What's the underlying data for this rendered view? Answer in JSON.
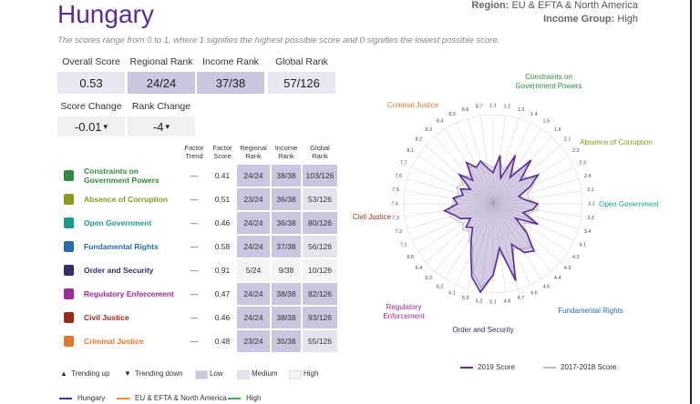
{
  "header": {
    "title": "Hungary",
    "region_label": "Region:",
    "region": "EU & EFTA & North America",
    "income_label": "Income Group:",
    "income": "High",
    "subtitle": "The scores range from 0 to 1, where 1 signifies the highest possible score and 0 signifies the lowest possible score."
  },
  "scores": [
    {
      "label": "Overall Score",
      "value": "0.53"
    },
    {
      "label": "Regional Rank",
      "value": "24/24"
    },
    {
      "label": "Income Rank",
      "value": "37/38"
    },
    {
      "label": "Global Rank",
      "value": "57/126"
    }
  ],
  "changes": [
    {
      "label": "Score Change",
      "value": "-0.01"
    },
    {
      "label": "Rank Change",
      "value": "-4"
    }
  ],
  "table": {
    "columns": [
      "Factor Trend",
      "Factor Score",
      "Regional Rank",
      "Income Rank",
      "Global Rank"
    ],
    "rows": [
      [
        "Constraints on Government Powers",
        "—",
        "0.41",
        "24/24",
        "38/38",
        "103/126"
      ],
      [
        "Absence of Corruption",
        "—",
        "0.51",
        "23/24",
        "36/38",
        "53/126"
      ],
      [
        "Open Government",
        "—",
        "0.46",
        "24/24",
        "36/38",
        "80/126"
      ],
      [
        "Fundamental Rights",
        "—",
        "0.58",
        "24/24",
        "37/38",
        "56/126"
      ],
      [
        "Order and Security",
        "—",
        "0.91",
        "5/24",
        "9/38",
        "10/126"
      ],
      [
        "Regulatory Enforcement",
        "—",
        "0.47",
        "24/24",
        "38/38",
        "82/126"
      ],
      [
        "Civil Justice",
        "—",
        "0.46",
        "24/24",
        "38/38",
        "93/126"
      ],
      [
        "Criminal Justice",
        "—",
        "0.48",
        "23/24",
        "35/38",
        "55/126"
      ]
    ]
  },
  "key": [
    "Trending up",
    "Trending down",
    "Low",
    "Medium",
    "High"
  ],
  "comparison_legend": [
    {
      "name": "Hungary",
      "color": "#5b2a9e"
    },
    {
      "name": "EU & EFTA & North America",
      "color": "#f08a2a"
    },
    {
      "name": "High",
      "color": "#3ab54a"
    }
  ],
  "chart_data": {
    "type": "radar",
    "factor_labels": [
      "Constraints on Government Powers",
      "Absence of Corruption",
      "Open Government",
      "Fundamental Rights",
      "Order and Security",
      "Regulatory Enforcement",
      "Civil Justice",
      "Criminal Justice"
    ],
    "categories": [
      "1.1",
      "1.2",
      "1.3",
      "1.4",
      "1.5",
      "1.6",
      "2.1",
      "2.2",
      "2.3",
      "2.4",
      "3.1",
      "3.2",
      "3.3",
      "3.4",
      "4.1",
      "4.2",
      "4.3",
      "4.4",
      "4.5",
      "4.6",
      "4.7",
      "4.8",
      "5.1",
      "5.2",
      "5.3",
      "6.1",
      "6.2",
      "6.3",
      "6.4",
      "6.5",
      "7.1",
      "7.2",
      "7.3",
      "7.4",
      "7.5",
      "7.6",
      "7.7",
      "8.1",
      "8.2",
      "8.3",
      "8.4",
      "8.5",
      "8.6",
      "8.7"
    ],
    "series": [
      {
        "name": "2019 Score",
        "color": "#5b2a9e",
        "values": [
          0.35,
          0.55,
          0.3,
          0.6,
          0.35,
          0.65,
          0.4,
          0.6,
          0.45,
          0.3,
          0.35,
          0.5,
          0.45,
          0.35,
          0.55,
          0.3,
          0.5,
          0.7,
          0.65,
          0.5,
          0.9,
          0.5,
          0.8,
          1.0,
          0.85,
          0.6,
          0.45,
          0.35,
          0.4,
          0.3,
          0.4,
          0.45,
          0.55,
          0.4,
          0.45,
          0.35,
          0.4,
          0.3,
          0.5,
          0.35,
          0.55,
          0.45,
          0.5,
          0.4
        ]
      },
      {
        "name": "2017-2018 Score",
        "color": "#bbbbbb",
        "values": [
          0.4,
          0.5,
          0.4,
          0.55,
          0.4,
          0.6,
          0.45,
          0.55,
          0.5,
          0.4,
          0.4,
          0.5,
          0.5,
          0.4,
          0.55,
          0.4,
          0.5,
          0.65,
          0.6,
          0.55,
          0.85,
          0.55,
          0.8,
          0.95,
          0.8,
          0.55,
          0.5,
          0.4,
          0.45,
          0.4,
          0.45,
          0.5,
          0.5,
          0.45,
          0.45,
          0.4,
          0.45,
          0.4,
          0.5,
          0.4,
          0.5,
          0.45,
          0.5,
          0.45
        ]
      }
    ],
    "rlim": [
      0,
      1
    ],
    "rticks": [
      0
    ]
  }
}
